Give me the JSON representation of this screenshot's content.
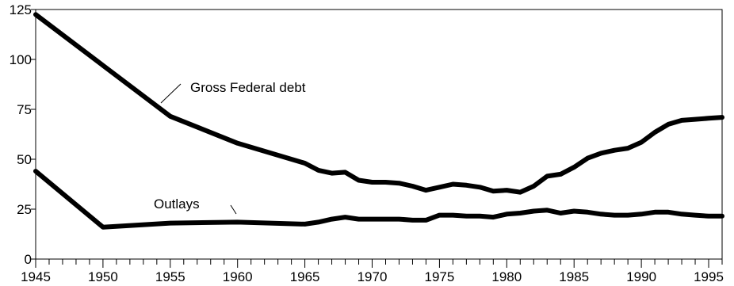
{
  "chart_data": {
    "type": "line",
    "title": "",
    "xlabel": "",
    "ylabel": "",
    "xlim": [
      1945,
      1996
    ],
    "ylim": [
      0,
      125
    ],
    "y_ticks": [
      0,
      25,
      50,
      75,
      100,
      125
    ],
    "x_tick_labels": [
      1945,
      1950,
      1955,
      1960,
      1965,
      1970,
      1975,
      1980,
      1985,
      1990,
      1995
    ],
    "x_minor_step": 1,
    "grid": false,
    "x": [
      1945,
      1950,
      1955,
      1960,
      1965,
      1966,
      1967,
      1968,
      1969,
      1970,
      1971,
      1972,
      1973,
      1974,
      1975,
      1976,
      1977,
      1978,
      1979,
      1980,
      1981,
      1982,
      1983,
      1984,
      1985,
      1986,
      1987,
      1988,
      1989,
      1990,
      1991,
      1992,
      1993,
      1994,
      1995,
      1996
    ],
    "series": [
      {
        "name": "Gross Federal debt",
        "color": "#000000",
        "values": [
          122.5,
          97,
          71.5,
          58,
          48,
          44.5,
          43,
          43.5,
          39.5,
          38.5,
          38.5,
          38,
          36.5,
          34.5,
          36,
          37.5,
          37,
          36,
          34,
          34.5,
          33.5,
          36.5,
          41.5,
          42.5,
          46,
          50.5,
          53,
          54.5,
          55.5,
          58.5,
          63.5,
          67.5,
          69.5,
          70,
          70.5,
          71
        ]
      },
      {
        "name": "Outlays",
        "color": "#000000",
        "values": [
          44,
          16,
          18,
          18.5,
          17.5,
          18.5,
          20,
          21,
          20,
          20,
          20,
          20,
          19.5,
          19.5,
          22,
          22,
          21.5,
          21.5,
          21,
          22.5,
          23,
          24,
          24.5,
          23,
          24,
          23.5,
          22.5,
          22,
          22,
          22.5,
          23.5,
          23.5,
          22.5,
          22,
          21.5,
          21.5
        ]
      }
    ],
    "annotations": [
      {
        "text": "Gross Federal debt",
        "series": 0
      },
      {
        "text": "Outlays",
        "series": 1
      }
    ]
  }
}
